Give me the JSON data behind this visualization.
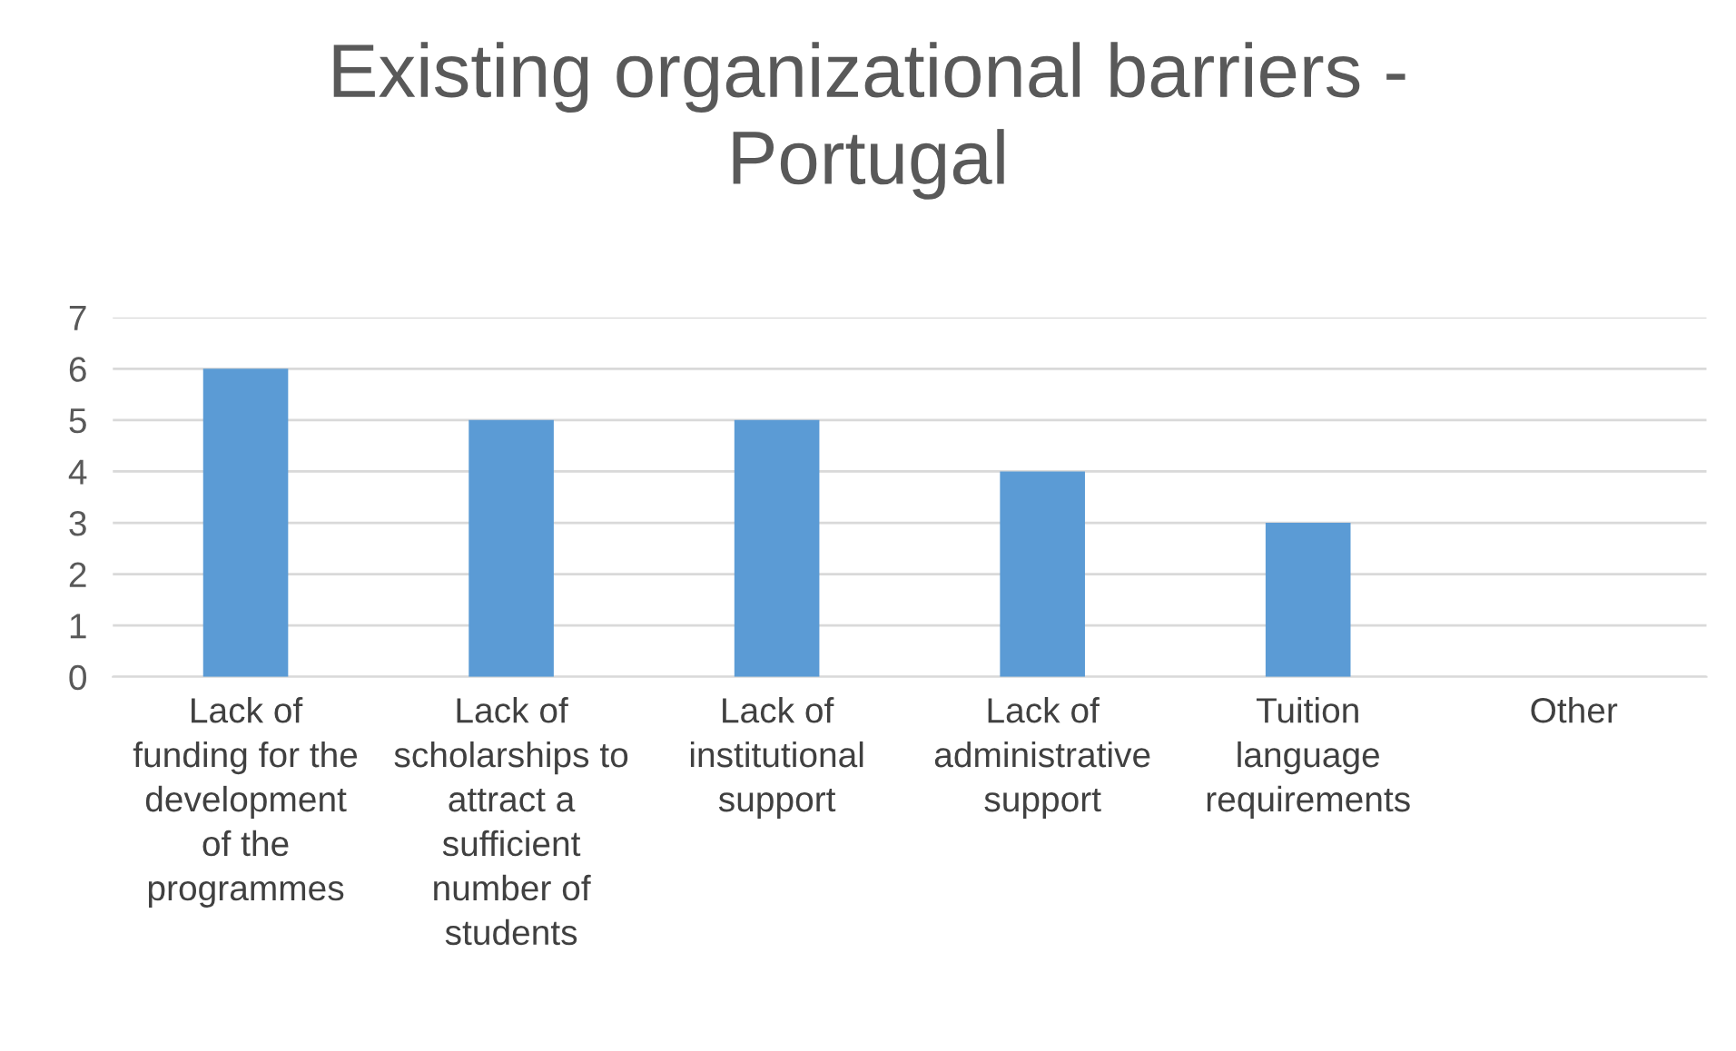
{
  "chart_data": {
    "type": "bar",
    "title": "Existing organizational barriers -\nPortugal",
    "categories": [
      "Lack of\nfunding for the\ndevelopment\nof the\nprogrammes",
      "Lack of\nscholarships to\nattract a\nsufficient\nnumber of\nstudents",
      "Lack of\ninstitutional\nsupport",
      "Lack of\nadministrative\nsupport",
      "Tuition\nlanguage\nrequirements",
      "Other"
    ],
    "values": [
      6,
      5,
      5,
      4,
      3,
      0
    ],
    "color": "#5b9bd5",
    "ylim": [
      0,
      7
    ],
    "yticks": [
      0,
      1,
      2,
      3,
      4,
      5,
      6,
      7
    ],
    "grid": "y",
    "legend": false
  }
}
